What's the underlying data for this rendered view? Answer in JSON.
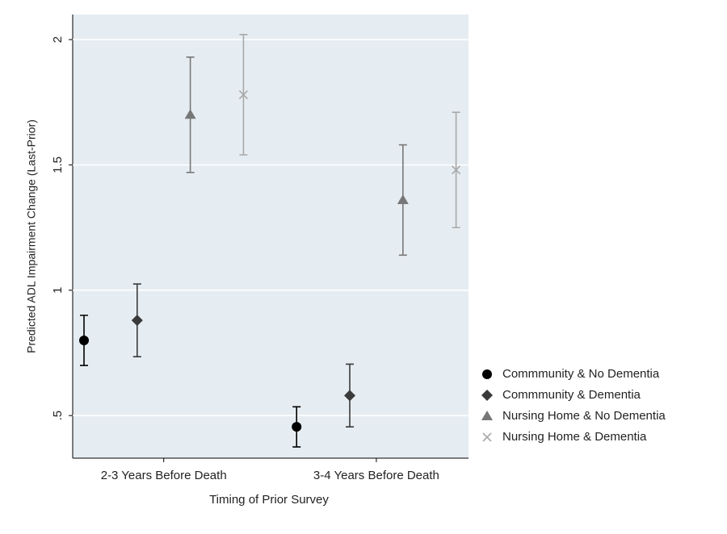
{
  "chart_data": {
    "type": "errorbar",
    "x_label": "Timing of Prior Survey",
    "y_label": "Predicted ADL Impairment Change (Last-Prior)",
    "categories": [
      "2-3 Years Before Death",
      "3-4 Years Before Death"
    ],
    "series": [
      {
        "name": "Commmunity & No Dementia",
        "color": "#000000",
        "marker": "circle",
        "values": [
          0.8,
          0.455
        ],
        "errors": [
          0.1,
          0.08
        ]
      },
      {
        "name": "Commmunity & Dementia",
        "color": "#3a3a3a",
        "marker": "diamond",
        "values": [
          0.88,
          0.58
        ],
        "errors": [
          0.145,
          0.125
        ]
      },
      {
        "name": "Nursing Home & No Dementia",
        "color": "#777777",
        "marker": "triangle",
        "values": [
          1.7,
          1.36
        ],
        "errors": [
          0.23,
          0.22
        ]
      },
      {
        "name": "Nursing Home & Dementia",
        "color": "#a8a8a8",
        "marker": "x",
        "values": [
          1.78,
          1.48
        ],
        "errors": [
          0.24,
          0.23
        ]
      }
    ],
    "ylim": [
      0.33,
      2.1
    ],
    "yticks": [
      {
        "value": 0.5,
        "label": ".5"
      },
      1,
      1.5,
      2
    ],
    "grid": true
  }
}
